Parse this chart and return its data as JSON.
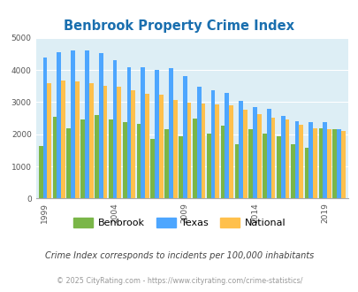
{
  "title": "Benbrook Property Crime Index",
  "years": [
    1999,
    2000,
    2001,
    2002,
    2003,
    2004,
    2005,
    2006,
    2007,
    2008,
    2009,
    2010,
    2011,
    2012,
    2013,
    2014,
    2015,
    2016,
    2017,
    2018,
    2019,
    2020
  ],
  "benbrook": [
    1650,
    2550,
    2200,
    2450,
    2600,
    2450,
    2370,
    2330,
    1850,
    2150,
    1950,
    2500,
    2030,
    2280,
    1700,
    2150,
    2020,
    1930,
    1700,
    1580,
    2200,
    2150
  ],
  "texas": [
    4400,
    4550,
    4620,
    4620,
    4520,
    4320,
    4080,
    4100,
    4000,
    4050,
    3800,
    3480,
    3380,
    3280,
    3050,
    2860,
    2780,
    2580,
    2420,
    2390,
    2390,
    2150
  ],
  "national": [
    3600,
    3680,
    3660,
    3580,
    3510,
    3480,
    3360,
    3270,
    3240,
    3060,
    2990,
    2950,
    2920,
    2890,
    2760,
    2640,
    2530,
    2460,
    2300,
    2200,
    2150,
    2100
  ],
  "benbrook_color": "#7ab648",
  "texas_color": "#4da6ff",
  "national_color": "#ffc04c",
  "bg_color": "#ddeef5",
  "ylim": [
    0,
    5000
  ],
  "yticks": [
    0,
    1000,
    2000,
    3000,
    4000,
    5000
  ],
  "xlabel_years": [
    1999,
    2004,
    2009,
    2014,
    2019
  ],
  "subtitle": "Crime Index corresponds to incidents per 100,000 inhabitants",
  "footer": "© 2025 CityRating.com - https://www.cityrating.com/crime-statistics/",
  "title_color": "#1a6faf",
  "subtitle_color": "#444444",
  "footer_color": "#999999"
}
